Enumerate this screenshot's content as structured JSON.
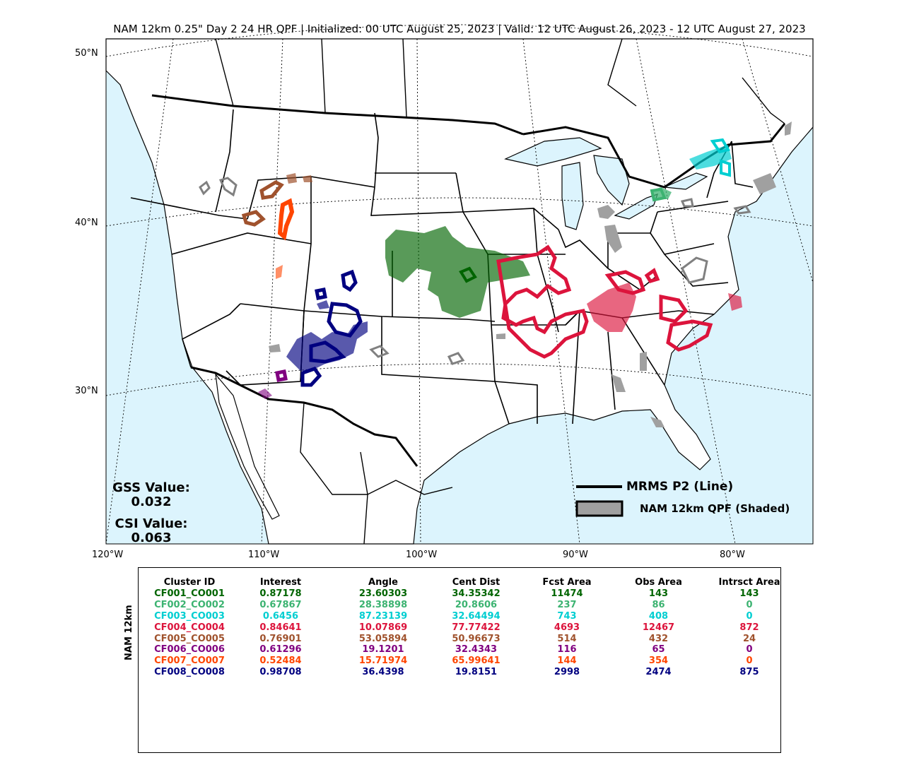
{
  "title": "NAM 12km 0.25\" Day 2 24 HR QPF | Initialized: 00 UTC August 25, 2023 | Valid: 12 UTC August 26, 2023 - 12 UTC August 27, 2023",
  "latitude_labels": [
    "50°N",
    "40°N",
    "30°N"
  ],
  "longitude_labels": [
    "120°W",
    "110°W",
    "100°W",
    "90°W",
    "80°W"
  ],
  "stats": {
    "gss_label": "GSS Value:",
    "gss_value": "0.032",
    "csi_label": "CSI Value:",
    "csi_value": "0.063"
  },
  "legend": {
    "obs_label": "MRMS P2 (Line)",
    "fcst_label": "NAM 12km QPF (Shaded)"
  },
  "colors": {
    "ocean": "#dcf4fd",
    "land": "#ffffff",
    "unmatched": "#a0a0a0"
  },
  "table": {
    "model_label": "NAM 12km",
    "headers": [
      "Cluster ID",
      "Interest",
      "Angle",
      "Cent Dist",
      "Fcst Area",
      "Obs Area",
      "Intrsct Area"
    ],
    "rows": [
      {
        "color": "#006400",
        "cells": [
          "CF001_CO001",
          "0.87178",
          "23.60303",
          "34.35342",
          "11474",
          "143",
          "143"
        ]
      },
      {
        "color": "#3cb371",
        "cells": [
          "CF002_CO002",
          "0.67867",
          "28.38898",
          "20.8606",
          "237",
          "86",
          "0"
        ]
      },
      {
        "color": "#00ced1",
        "cells": [
          "CF003_CO003",
          "0.6456",
          "87.23139",
          "32.64494",
          "743",
          "408",
          "0"
        ]
      },
      {
        "color": "#dc143c",
        "cells": [
          "CF004_CO004",
          "0.84641",
          "10.07869",
          "77.77422",
          "4693",
          "12467",
          "872"
        ]
      },
      {
        "color": "#a0522d",
        "cells": [
          "CF005_CO005",
          "0.76901",
          "53.05894",
          "50.96673",
          "514",
          "432",
          "24"
        ]
      },
      {
        "color": "#800080",
        "cells": [
          "CF006_CO006",
          "0.61296",
          "19.1201",
          "32.4343",
          "116",
          "65",
          "0"
        ]
      },
      {
        "color": "#ff4500",
        "cells": [
          "CF007_CO007",
          "0.52484",
          "15.71974",
          "65.99641",
          "144",
          "354",
          "0"
        ]
      },
      {
        "color": "#000080",
        "cells": [
          "CF008_CO008",
          "0.98708",
          "36.4398",
          "19.8151",
          "2998",
          "2474",
          "875"
        ]
      }
    ]
  }
}
